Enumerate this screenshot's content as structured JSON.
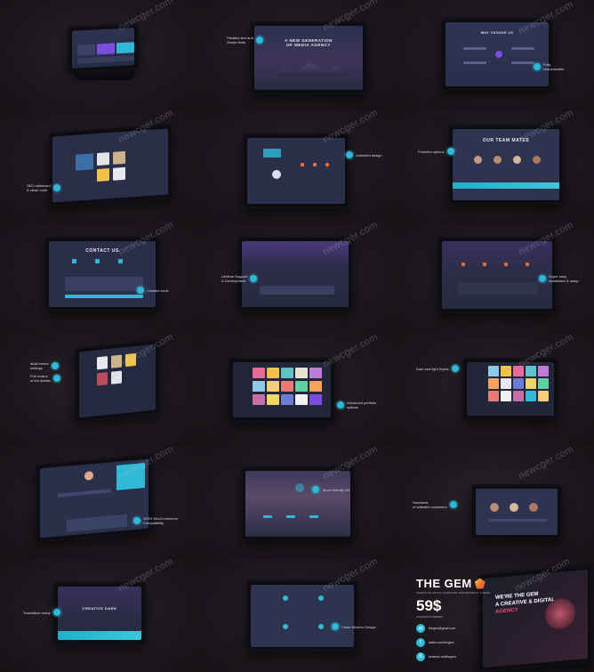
{
  "watermark": "newcger.com",
  "callouts": {
    "c1": "Parallax text and\nStroke texts",
    "c2": "Fully\ncustomizable",
    "c3": "SEO optimized\n& clean code",
    "c4": "Unlimited design",
    "c5": "Powerful options",
    "c6": "Creative tools",
    "c7": "Lifetime Support\n& Development",
    "c8": "Super easy\ninstallation & setup",
    "c9a": "Multi theme\nsettings",
    "c9b": "Full control\nof the details",
    "c10": "Advanced portfolio\noptions",
    "c11": "Dark and light Styles",
    "c12": "100% WooCommerce\nCompatibility",
    "c13": "Touch friendly UX",
    "c14": "Hundreds\nof satisfied customers",
    "c15": "Translation ready",
    "c16": "Clean Modern Design"
  },
  "screens": {
    "s2_title": "A NEW GENERATION\nOF MEDIA AGENCY",
    "s3_title": "WHY CHOOSE US",
    "s6_title": "OUR TEAM MATES",
    "s7_title": "CONTACT US",
    "s13_title": "CREATIVE DARK"
  },
  "promo": {
    "brand": "THE GEM",
    "tagline": "CREATIVE MULTI-PURPOSE WORDPRESS THEME",
    "price": "59$",
    "price_sub": "ON ENVATO MARKET",
    "contacts": [
      {
        "icon": "mail-icon",
        "text": "thegem@gmail.com"
      },
      {
        "icon": "twitter-icon",
        "text": "twitter.com/thegem"
      },
      {
        "icon": "behance-icon",
        "text": "behance.net/thegem"
      }
    ],
    "hero_line1": "WE'RE THE GEM",
    "hero_line2": "A CREATIVE & DIGITAL",
    "hero_line3": "AGENCY"
  },
  "colors": {
    "accent": "#2fb9d6",
    "background": "#1a1519",
    "screen": "#2d3350"
  }
}
